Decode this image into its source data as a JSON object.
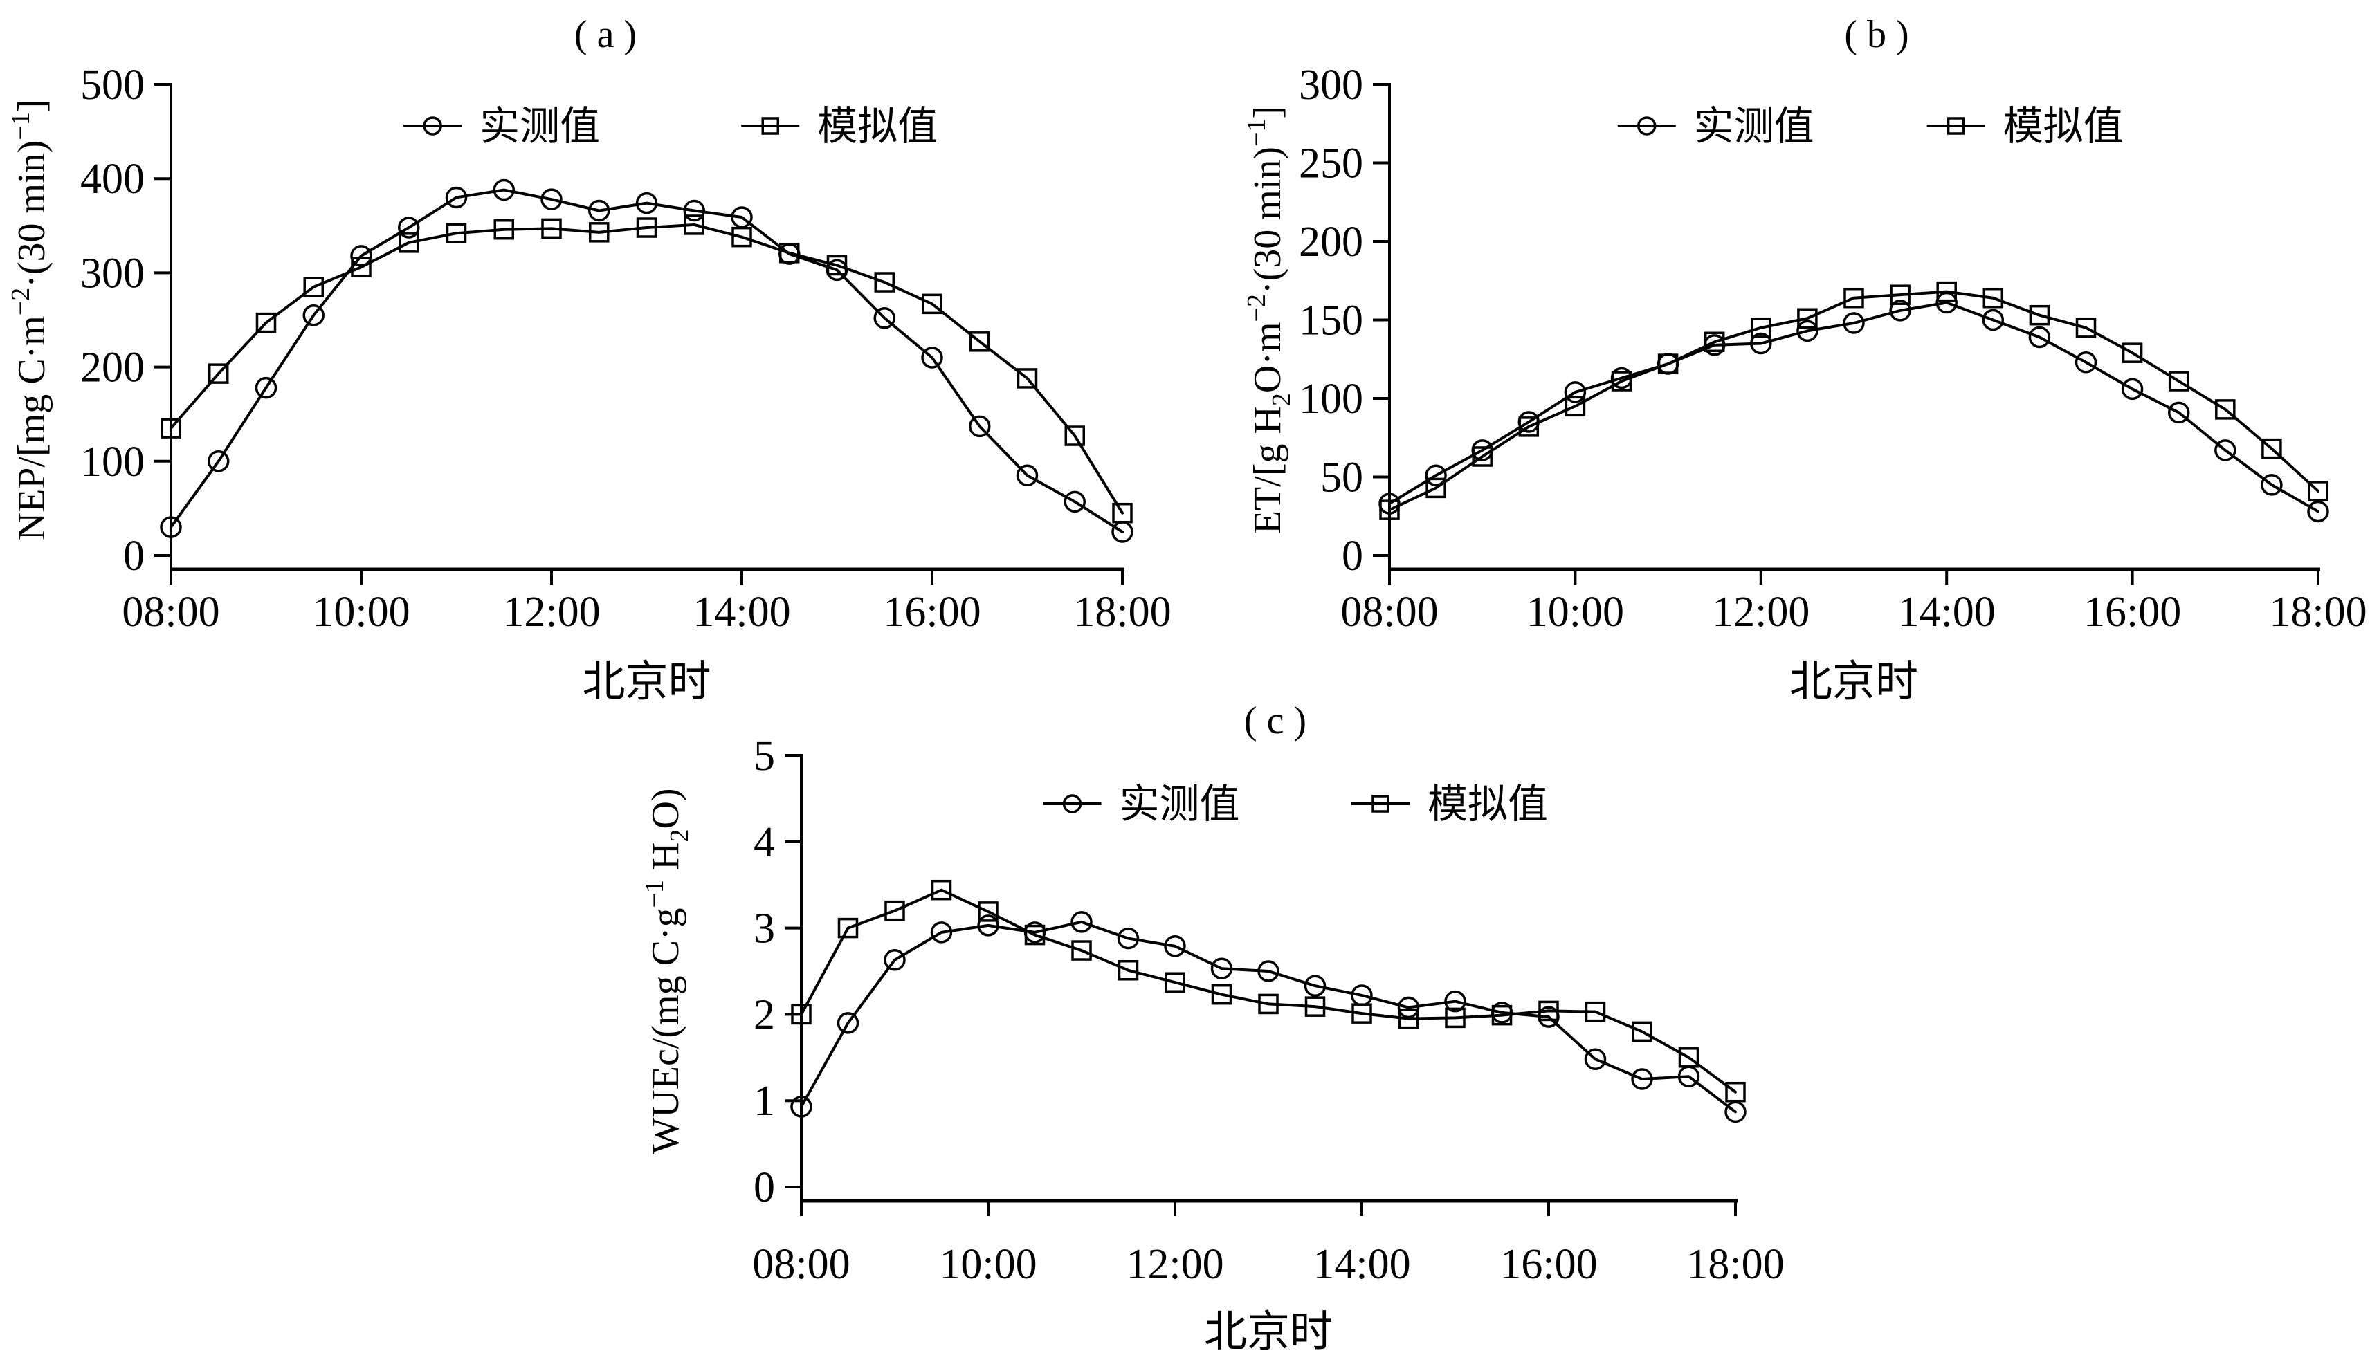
{
  "figure": {
    "background": "#ffffff",
    "ink_color": "#000000",
    "xlabel": "北京时",
    "legend_labels": [
      "实测值",
      "模拟值"
    ],
    "x_categories": [
      "08:00",
      "08:30",
      "09:00",
      "09:30",
      "10:00",
      "10:30",
      "11:00",
      "11:30",
      "12:00",
      "12:30",
      "13:00",
      "13:30",
      "14:00",
      "14:30",
      "15:00",
      "15:30",
      "16:00",
      "16:30",
      "17:00",
      "17:30",
      "18:00"
    ],
    "xtick_labels": [
      "08:00",
      "10:00",
      "12:00",
      "14:00",
      "16:00",
      "18:00"
    ]
  },
  "chart_data": [
    {
      "panel": "a",
      "type": "line",
      "title": "( a )",
      "xlabel": "北京时",
      "ylabel": "NEP/[mg C·m⁻²·(30 min)⁻¹]",
      "ylabel_parts": [
        {
          "t": "NEP/[mg C·m"
        },
        {
          "sup": "−2"
        },
        {
          "t": "·(30 min)"
        },
        {
          "sup": "−1"
        },
        {
          "t": "]"
        }
      ],
      "ylim": [
        0,
        500
      ],
      "yticks": [
        0,
        100,
        200,
        300,
        400,
        500
      ],
      "grid": false,
      "legend_position": "top",
      "x": [
        "08:00",
        "08:30",
        "09:00",
        "09:30",
        "10:00",
        "10:30",
        "11:00",
        "11:30",
        "12:00",
        "12:30",
        "13:00",
        "13:30",
        "14:00",
        "14:30",
        "15:00",
        "15:30",
        "16:00",
        "16:30",
        "17:00",
        "17:30",
        "18:00"
      ],
      "xtick_labels": [
        "08:00",
        "10:00",
        "12:00",
        "14:00",
        "16:00",
        "18:00"
      ],
      "series": [
        {
          "name": "实测值",
          "marker": "circle",
          "values": [
            30,
            100,
            178,
            255,
            318,
            348,
            380,
            388,
            378,
            366,
            374,
            366,
            359,
            320,
            303,
            252,
            210,
            137,
            85,
            57,
            25
          ]
        },
        {
          "name": "模拟值",
          "marker": "square",
          "values": [
            135,
            193,
            247,
            285,
            306,
            332,
            342,
            346,
            347,
            343,
            348,
            351,
            338,
            321,
            308,
            290,
            267,
            227,
            188,
            127,
            45
          ]
        }
      ]
    },
    {
      "panel": "b",
      "type": "line",
      "title": "( b )",
      "xlabel": "北京时",
      "ylabel": "ET/[g H₂O·m⁻²·(30 min)⁻¹]",
      "ylabel_parts": [
        {
          "t": "ET/[g H"
        },
        {
          "sub": "2"
        },
        {
          "t": "O·m"
        },
        {
          "sup": "−2"
        },
        {
          "t": "·(30 min)"
        },
        {
          "sup": "−1"
        },
        {
          "t": "]"
        }
      ],
      "ylim": [
        0,
        300
      ],
      "yticks": [
        0,
        50,
        100,
        150,
        200,
        250,
        300
      ],
      "grid": false,
      "legend_position": "top",
      "x": [
        "08:00",
        "08:30",
        "09:00",
        "09:30",
        "10:00",
        "10:30",
        "11:00",
        "11:30",
        "12:00",
        "12:30",
        "13:00",
        "13:30",
        "14:00",
        "14:30",
        "15:00",
        "15:30",
        "16:00",
        "16:30",
        "17:00",
        "17:30",
        "18:00"
      ],
      "xtick_labels": [
        "08:00",
        "10:00",
        "12:00",
        "14:00",
        "16:00",
        "18:00"
      ],
      "series": [
        {
          "name": "实测值",
          "marker": "circle",
          "values": [
            33,
            51,
            67,
            85,
            104,
            113,
            122,
            134,
            135,
            143,
            148,
            156,
            161,
            150,
            139,
            123,
            106,
            91,
            67,
            45,
            28
          ]
        },
        {
          "name": "模拟值",
          "marker": "square",
          "values": [
            29,
            43,
            63,
            82,
            95,
            111,
            122,
            136,
            145,
            151,
            164,
            166,
            168,
            164,
            153,
            145,
            129,
            111,
            93,
            68,
            41
          ]
        }
      ]
    },
    {
      "panel": "c",
      "type": "line",
      "title": "( c )",
      "xlabel": "北京时",
      "ylabel": "WUEc/(mg C·g⁻¹ H₂O)",
      "ylabel_parts": [
        {
          "t": "WUEc/(mg C·g"
        },
        {
          "sup": "−1"
        },
        {
          "t": " H"
        },
        {
          "sub": "2"
        },
        {
          "t": "O)"
        }
      ],
      "ylim": [
        0,
        5
      ],
      "yticks": [
        0,
        1,
        2,
        3,
        4,
        5
      ],
      "grid": false,
      "legend_position": "top",
      "x": [
        "08:00",
        "08:30",
        "09:00",
        "09:30",
        "10:00",
        "10:30",
        "11:00",
        "11:30",
        "12:00",
        "12:30",
        "13:00",
        "13:30",
        "14:00",
        "14:30",
        "15:00",
        "15:30",
        "16:00",
        "16:30",
        "17:00",
        "17:30",
        "18:00"
      ],
      "xtick_labels": [
        "08:00",
        "10:00",
        "12:00",
        "14:00",
        "16:00",
        "18:00"
      ],
      "series": [
        {
          "name": "实测值",
          "marker": "circle",
          "values": [
            0.93,
            1.9,
            2.63,
            2.95,
            3.03,
            2.95,
            3.07,
            2.88,
            2.79,
            2.53,
            2.5,
            2.33,
            2.22,
            2.08,
            2.15,
            2.02,
            1.97,
            1.48,
            1.25,
            1.28,
            0.87
          ]
        },
        {
          "name": "模拟值",
          "marker": "square",
          "values": [
            2.0,
            3.0,
            3.2,
            3.44,
            3.19,
            2.92,
            2.74,
            2.51,
            2.37,
            2.23,
            2.12,
            2.09,
            2.01,
            1.95,
            1.96,
            1.99,
            2.04,
            2.03,
            1.8,
            1.5,
            1.1
          ]
        }
      ]
    }
  ]
}
